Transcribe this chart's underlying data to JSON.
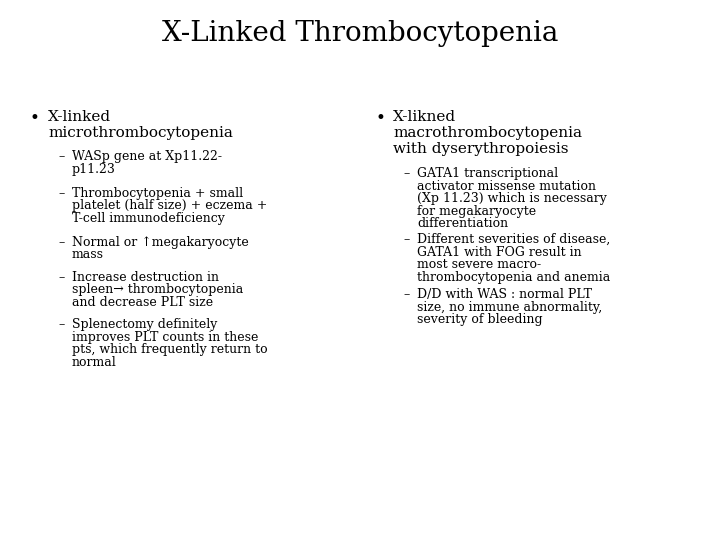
{
  "title": "X-Linked Thrombocytopenia",
  "title_fontsize": 20,
  "background_color": "#ffffff",
  "text_color": "#000000",
  "left_bullet_header_line1": "X-linked",
  "left_bullet_header_line2": "microthrombocytopenia",
  "left_subitems": [
    "WASp gene at Xp11.22-\np11.23",
    "Thrombocytopenia + small\nplatelet (half size) + eczema +\nT-cell immunodeficiency",
    "Normal or ↑megakaryocyte\nmass",
    "Increase destruction in\nspleen→ thrombocytopenia\nand decrease PLT size",
    "Splenectomy definitely\nimproves PLT counts in these\npts, which frequently return to\nnormal"
  ],
  "right_bullet_header_line1": "X-likned",
  "right_bullet_header_line2": "macrothrombocytopenia",
  "right_bullet_header_line3": "with dyserythropoiesis",
  "right_subitems": [
    "GATA1 transcriptional\nactivator missense mutation\n(Xp 11.23) which is necessary\nfor megakaryocyte\ndifferentiation",
    "Different severities of disease,\nGATA1 with FOG result in\nmost severe macro-\nthrombocytopenia and anemia",
    "D/D with WAS : normal PLT\nsize, no immune abnormality,\nseverity of bleeding"
  ],
  "body_fontsize": 9.0,
  "header_fontsize": 11.0,
  "font_family": "DejaVu Serif"
}
